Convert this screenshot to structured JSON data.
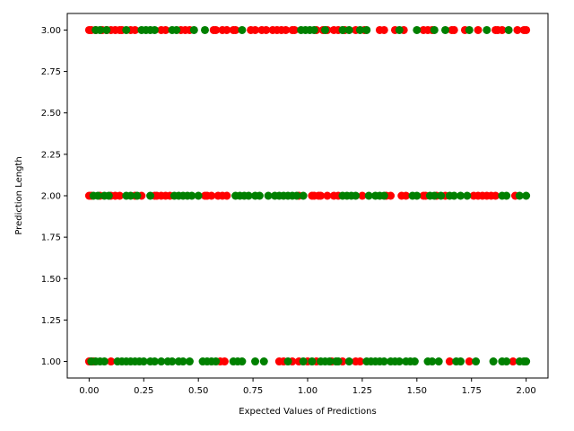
{
  "chart_data": {
    "type": "scatter",
    "xlabel": "Expected Values of Predictions",
    "ylabel": "Prediction Length",
    "xlim": [
      -0.1,
      2.1
    ],
    "ylim": [
      0.9,
      3.1
    ],
    "x_ticks": [
      "0.00",
      "0.25",
      "0.50",
      "0.75",
      "1.00",
      "1.25",
      "1.50",
      "1.75",
      "2.00"
    ],
    "y_ticks": [
      "1.00",
      "1.25",
      "1.50",
      "1.75",
      "2.00",
      "2.25",
      "2.50",
      "2.75",
      "3.00"
    ],
    "grid": false,
    "colors": {
      "green": "#008000",
      "red": "#ff0000"
    },
    "series": [
      {
        "color": "red",
        "points": [
          [
            0.0,
            3
          ],
          [
            0.01,
            3
          ],
          [
            0.03,
            3
          ],
          [
            0.06,
            3
          ],
          [
            0.08,
            3
          ],
          [
            0.1,
            3
          ],
          [
            0.12,
            3
          ],
          [
            0.14,
            3
          ],
          [
            0.15,
            3
          ],
          [
            0.19,
            3
          ],
          [
            0.21,
            3
          ],
          [
            0.33,
            3
          ],
          [
            0.35,
            3
          ],
          [
            0.42,
            3
          ],
          [
            0.44,
            3
          ],
          [
            0.46,
            3
          ],
          [
            0.57,
            3
          ],
          [
            0.58,
            3
          ],
          [
            0.61,
            3
          ],
          [
            0.63,
            3
          ],
          [
            0.66,
            3
          ],
          [
            0.67,
            3
          ],
          [
            0.74,
            3
          ],
          [
            0.76,
            3
          ],
          [
            0.79,
            3
          ],
          [
            0.81,
            3
          ],
          [
            0.84,
            3
          ],
          [
            0.86,
            3
          ],
          [
            0.88,
            3
          ],
          [
            0.9,
            3
          ],
          [
            0.93,
            3
          ],
          [
            0.94,
            3
          ],
          [
            1.04,
            3
          ],
          [
            1.07,
            3
          ],
          [
            1.09,
            3
          ],
          [
            1.12,
            3
          ],
          [
            1.14,
            3
          ],
          [
            1.17,
            3
          ],
          [
            1.22,
            3
          ],
          [
            1.26,
            3
          ],
          [
            1.33,
            3
          ],
          [
            1.35,
            3
          ],
          [
            1.4,
            3
          ],
          [
            1.44,
            3
          ],
          [
            1.53,
            3
          ],
          [
            1.55,
            3
          ],
          [
            1.57,
            3
          ],
          [
            1.66,
            3
          ],
          [
            1.67,
            3
          ],
          [
            1.72,
            3
          ],
          [
            1.78,
            3
          ],
          [
            1.86,
            3
          ],
          [
            1.87,
            3
          ],
          [
            1.89,
            3
          ],
          [
            1.96,
            3
          ],
          [
            1.99,
            3
          ],
          [
            2.0,
            3
          ],
          [
            0.0,
            2
          ],
          [
            0.01,
            2
          ],
          [
            0.05,
            2
          ],
          [
            0.1,
            2
          ],
          [
            0.12,
            2
          ],
          [
            0.14,
            2
          ],
          [
            0.21,
            2
          ],
          [
            0.24,
            2
          ],
          [
            0.3,
            2
          ],
          [
            0.31,
            2
          ],
          [
            0.33,
            2
          ],
          [
            0.35,
            2
          ],
          [
            0.37,
            2
          ],
          [
            0.53,
            2
          ],
          [
            0.54,
            2
          ],
          [
            0.56,
            2
          ],
          [
            0.59,
            2
          ],
          [
            0.61,
            2
          ],
          [
            0.63,
            2
          ],
          [
            0.96,
            2
          ],
          [
            1.02,
            2
          ],
          [
            1.03,
            2
          ],
          [
            1.05,
            2
          ],
          [
            1.06,
            2
          ],
          [
            1.09,
            2
          ],
          [
            1.12,
            2
          ],
          [
            1.14,
            2
          ],
          [
            1.25,
            2
          ],
          [
            1.36,
            2
          ],
          [
            1.38,
            2
          ],
          [
            1.43,
            2
          ],
          [
            1.45,
            2
          ],
          [
            1.53,
            2
          ],
          [
            1.54,
            2
          ],
          [
            1.59,
            2
          ],
          [
            1.63,
            2
          ],
          [
            1.76,
            2
          ],
          [
            1.78,
            2
          ],
          [
            1.8,
            2
          ],
          [
            1.82,
            2
          ],
          [
            1.84,
            2
          ],
          [
            1.86,
            2
          ],
          [
            1.95,
            2
          ],
          [
            0.0,
            1
          ],
          [
            0.01,
            1
          ],
          [
            0.02,
            1
          ],
          [
            0.1,
            1
          ],
          [
            0.6,
            1
          ],
          [
            0.62,
            1
          ],
          [
            0.87,
            1
          ],
          [
            0.89,
            1
          ],
          [
            0.93,
            1
          ],
          [
            0.96,
            1
          ],
          [
            1.0,
            1
          ],
          [
            1.04,
            1
          ],
          [
            1.11,
            1
          ],
          [
            1.16,
            1
          ],
          [
            1.22,
            1
          ],
          [
            1.24,
            1
          ],
          [
            1.65,
            1
          ],
          [
            1.74,
            1
          ],
          [
            1.94,
            1
          ]
        ]
      },
      {
        "color": "green",
        "points": [
          [
            0.03,
            3
          ],
          [
            0.05,
            3
          ],
          [
            0.08,
            3
          ],
          [
            0.17,
            3
          ],
          [
            0.24,
            3
          ],
          [
            0.26,
            3
          ],
          [
            0.28,
            3
          ],
          [
            0.3,
            3
          ],
          [
            0.38,
            3
          ],
          [
            0.4,
            3
          ],
          [
            0.48,
            3
          ],
          [
            0.53,
            3
          ],
          [
            0.7,
            3
          ],
          [
            0.97,
            3
          ],
          [
            0.99,
            3
          ],
          [
            1.01,
            3
          ],
          [
            1.03,
            3
          ],
          [
            1.08,
            3
          ],
          [
            1.16,
            3
          ],
          [
            1.19,
            3
          ],
          [
            1.24,
            3
          ],
          [
            1.27,
            3
          ],
          [
            1.42,
            3
          ],
          [
            1.5,
            3
          ],
          [
            1.58,
            3
          ],
          [
            1.63,
            3
          ],
          [
            1.74,
            3
          ],
          [
            1.82,
            3
          ],
          [
            1.92,
            3
          ],
          [
            0.02,
            2
          ],
          [
            0.04,
            2
          ],
          [
            0.07,
            2
          ],
          [
            0.09,
            2
          ],
          [
            0.17,
            2
          ],
          [
            0.19,
            2
          ],
          [
            0.22,
            2
          ],
          [
            0.28,
            2
          ],
          [
            0.39,
            2
          ],
          [
            0.41,
            2
          ],
          [
            0.43,
            2
          ],
          [
            0.45,
            2
          ],
          [
            0.47,
            2
          ],
          [
            0.5,
            2
          ],
          [
            0.67,
            2
          ],
          [
            0.69,
            2
          ],
          [
            0.71,
            2
          ],
          [
            0.73,
            2
          ],
          [
            0.76,
            2
          ],
          [
            0.78,
            2
          ],
          [
            0.82,
            2
          ],
          [
            0.85,
            2
          ],
          [
            0.87,
            2
          ],
          [
            0.89,
            2
          ],
          [
            0.91,
            2
          ],
          [
            0.93,
            2
          ],
          [
            0.95,
            2
          ],
          [
            0.98,
            2
          ],
          [
            1.16,
            2
          ],
          [
            1.18,
            2
          ],
          [
            1.2,
            2
          ],
          [
            1.22,
            2
          ],
          [
            1.28,
            2
          ],
          [
            1.31,
            2
          ],
          [
            1.33,
            2
          ],
          [
            1.35,
            2
          ],
          [
            1.48,
            2
          ],
          [
            1.5,
            2
          ],
          [
            1.56,
            2
          ],
          [
            1.58,
            2
          ],
          [
            1.61,
            2
          ],
          [
            1.65,
            2
          ],
          [
            1.67,
            2
          ],
          [
            1.7,
            2
          ],
          [
            1.73,
            2
          ],
          [
            1.89,
            2
          ],
          [
            1.91,
            2
          ],
          [
            1.97,
            2
          ],
          [
            2.0,
            2
          ],
          [
            0.01,
            1
          ],
          [
            0.03,
            1
          ],
          [
            0.05,
            1
          ],
          [
            0.07,
            1
          ],
          [
            0.13,
            1
          ],
          [
            0.15,
            1
          ],
          [
            0.17,
            1
          ],
          [
            0.19,
            1
          ],
          [
            0.21,
            1
          ],
          [
            0.23,
            1
          ],
          [
            0.25,
            1
          ],
          [
            0.28,
            1
          ],
          [
            0.3,
            1
          ],
          [
            0.33,
            1
          ],
          [
            0.36,
            1
          ],
          [
            0.38,
            1
          ],
          [
            0.41,
            1
          ],
          [
            0.43,
            1
          ],
          [
            0.46,
            1
          ],
          [
            0.52,
            1
          ],
          [
            0.54,
            1
          ],
          [
            0.56,
            1
          ],
          [
            0.58,
            1
          ],
          [
            0.66,
            1
          ],
          [
            0.68,
            1
          ],
          [
            0.7,
            1
          ],
          [
            0.76,
            1
          ],
          [
            0.8,
            1
          ],
          [
            0.91,
            1
          ],
          [
            0.98,
            1
          ],
          [
            1.02,
            1
          ],
          [
            1.06,
            1
          ],
          [
            1.08,
            1
          ],
          [
            1.1,
            1
          ],
          [
            1.13,
            1
          ],
          [
            1.14,
            1
          ],
          [
            1.19,
            1
          ],
          [
            1.27,
            1
          ],
          [
            1.29,
            1
          ],
          [
            1.31,
            1
          ],
          [
            1.33,
            1
          ],
          [
            1.35,
            1
          ],
          [
            1.38,
            1
          ],
          [
            1.4,
            1
          ],
          [
            1.42,
            1
          ],
          [
            1.45,
            1
          ],
          [
            1.47,
            1
          ],
          [
            1.49,
            1
          ],
          [
            1.55,
            1
          ],
          [
            1.57,
            1
          ],
          [
            1.6,
            1
          ],
          [
            1.68,
            1
          ],
          [
            1.7,
            1
          ],
          [
            1.77,
            1
          ],
          [
            1.85,
            1
          ],
          [
            1.89,
            1
          ],
          [
            1.91,
            1
          ],
          [
            1.97,
            1
          ],
          [
            1.99,
            1
          ],
          [
            2.0,
            1
          ]
        ]
      }
    ]
  }
}
